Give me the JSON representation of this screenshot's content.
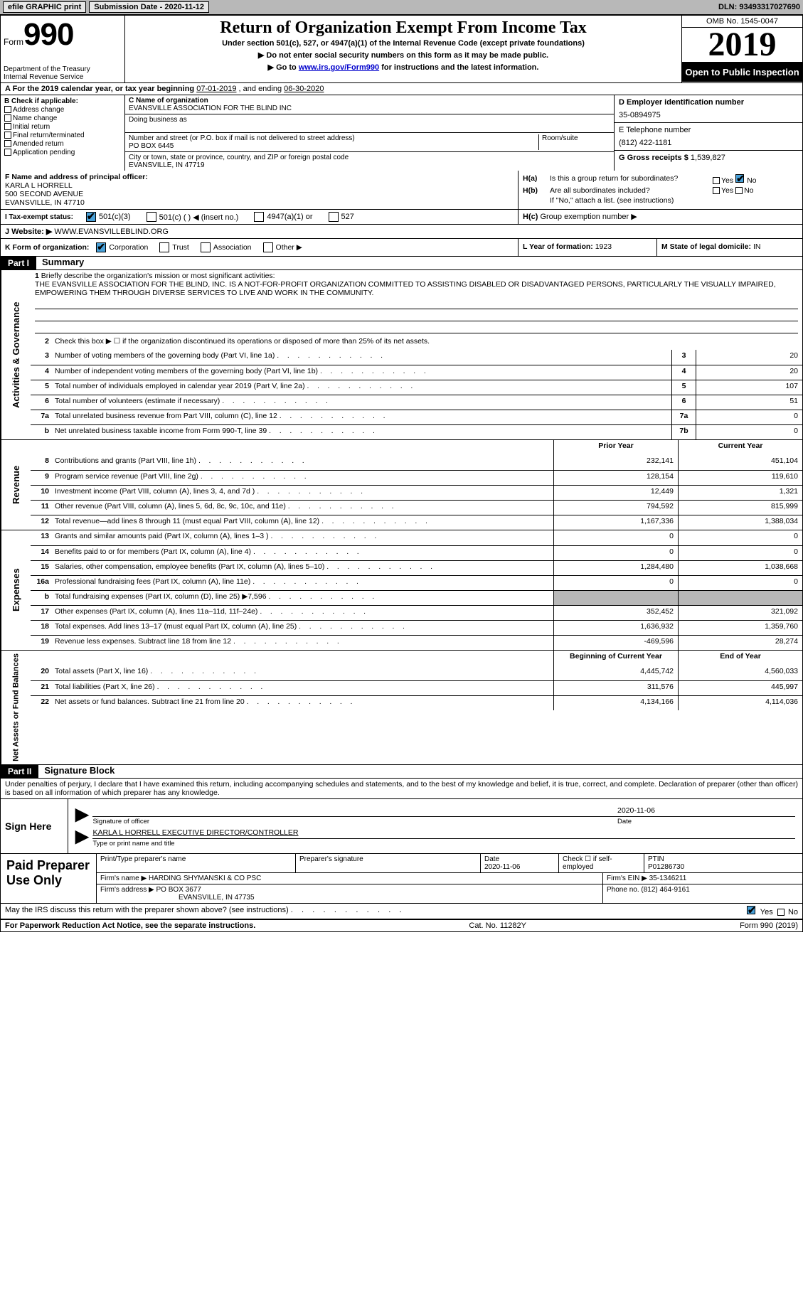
{
  "top_bar": {
    "efile": "efile GRAPHIC print",
    "submission_label": "Submission Date - ",
    "submission_date": "2020-11-12",
    "dln_label": "DLN: ",
    "dln": "93493317027690"
  },
  "header": {
    "form_label": "Form",
    "form_number": "990",
    "dept": "Department of the Treasury\nInternal Revenue Service",
    "title": "Return of Organization Exempt From Income Tax",
    "subtitle": "Under section 501(c), 527, or 4947(a)(1) of the Internal Revenue Code (except private foundations)",
    "note1": "▶ Do not enter social security numbers on this form as it may be made public.",
    "note2_pre": "▶ Go to ",
    "note2_link": "www.irs.gov/Form990",
    "note2_post": " for instructions and the latest information.",
    "omb": "OMB No. 1545-0047",
    "year": "2019",
    "open_public": "Open to Public Inspection"
  },
  "period": {
    "label_a": "A For the 2019 calendar year, or tax year beginning ",
    "begin": "07-01-2019",
    "mid": " , and ending ",
    "end": "06-30-2020"
  },
  "boxB": {
    "label": "B Check if applicable:",
    "opts": [
      "Address change",
      "Name change",
      "Initial return",
      "Final return/terminated",
      "Amended return",
      "Application pending"
    ]
  },
  "boxC": {
    "name_label": "C Name of organization",
    "name": "EVANSVILLE ASSOCIATION FOR THE BLIND INC",
    "dba_label": "Doing business as",
    "dba": "",
    "street_label": "Number and street (or P.O. box if mail is not delivered to street address)",
    "room_label": "Room/suite",
    "street": "PO BOX 6445",
    "city_label": "City or town, state or province, country, and ZIP or foreign postal code",
    "city": "EVANSVILLE, IN  47719"
  },
  "boxD": {
    "label": "D Employer identification number",
    "value": "35-0894975"
  },
  "boxE": {
    "label": "E Telephone number",
    "value": "(812) 422-1181"
  },
  "boxG": {
    "label": "G Gross receipts $ ",
    "value": "1,539,827"
  },
  "boxF": {
    "label": "F Name and address of principal officer:",
    "name": "KARLA L HORRELL",
    "street": "500 SECOND AVENUE",
    "city": "EVANSVILLE, IN  47710"
  },
  "boxH": {
    "a_label": "H(a)",
    "a_text": "Is this a group return for subordinates?",
    "a_yes": "Yes",
    "a_no": "No",
    "a_checked": "no",
    "b_label": "H(b)",
    "b_text": "Are all subordinates included?",
    "b_yes": "Yes",
    "b_no": "No",
    "b_note": "If \"No,\" attach a list. (see instructions)",
    "c_label": "H(c)",
    "c_text": "Group exemption number ▶"
  },
  "boxI": {
    "label": "I    Tax-exempt status:",
    "opts": [
      "501(c)(3)",
      "501(c) (  ) ◀ (insert no.)",
      "4947(a)(1) or",
      "527"
    ],
    "checked": 0
  },
  "boxJ": {
    "label": "J   Website: ▶",
    "value": " WWW.EVANSVILLEBLIND.ORG"
  },
  "boxK": {
    "label": "K Form of organization:",
    "opts": [
      "Corporation",
      "Trust",
      "Association",
      "Other ▶"
    ],
    "checked": 0
  },
  "boxL": {
    "label": "L Year of formation: ",
    "value": "1923"
  },
  "boxM": {
    "label": "M State of legal domicile: ",
    "value": "IN"
  },
  "partI": {
    "header": "Part I",
    "title": "Summary",
    "vert1": "Activities & Governance",
    "vert2": "Revenue",
    "vert3": "Expenses",
    "vert4": "Net Assets or Fund Balances",
    "line1_label": "Briefly describe the organization's mission or most significant activities:",
    "mission": "THE EVANSVILLE ASSOCIATION FOR THE BLIND, INC. IS A NOT-FOR-PROFIT ORGANIZATION COMMITTED TO ASSISTING DISABLED OR DISADVANTAGED PERSONS, PARTICULARLY THE VISUALLY IMPAIRED, EMPOWERING THEM THROUGH DIVERSE SERVICES TO LIVE AND WORK IN THE COMMUNITY.",
    "line2": "Check this box ▶ ☐  if the organization discontinued its operations or disposed of more than 25% of its net assets.",
    "gov_lines": [
      {
        "n": "3",
        "d": "Number of voting members of the governing body (Part VI, line 1a)",
        "bn": "3",
        "v": "20"
      },
      {
        "n": "4",
        "d": "Number of independent voting members of the governing body (Part VI, line 1b)",
        "bn": "4",
        "v": "20"
      },
      {
        "n": "5",
        "d": "Total number of individuals employed in calendar year 2019 (Part V, line 2a)",
        "bn": "5",
        "v": "107"
      },
      {
        "n": "6",
        "d": "Total number of volunteers (estimate if necessary)",
        "bn": "6",
        "v": "51"
      },
      {
        "n": "7a",
        "d": "Total unrelated business revenue from Part VIII, column (C), line 12",
        "bn": "7a",
        "v": "0"
      },
      {
        "n": "b",
        "d": "Net unrelated business taxable income from Form 990-T, line 39",
        "bn": "7b",
        "v": "0"
      }
    ],
    "col_py": "Prior Year",
    "col_cy": "Current Year",
    "rev_lines": [
      {
        "n": "8",
        "d": "Contributions and grants (Part VIII, line 1h)",
        "py": "232,141",
        "cy": "451,104"
      },
      {
        "n": "9",
        "d": "Program service revenue (Part VIII, line 2g)",
        "py": "128,154",
        "cy": "119,610"
      },
      {
        "n": "10",
        "d": "Investment income (Part VIII, column (A), lines 3, 4, and 7d )",
        "py": "12,449",
        "cy": "1,321"
      },
      {
        "n": "11",
        "d": "Other revenue (Part VIII, column (A), lines 5, 6d, 8c, 9c, 10c, and 11e)",
        "py": "794,592",
        "cy": "815,999"
      },
      {
        "n": "12",
        "d": "Total revenue—add lines 8 through 11 (must equal Part VIII, column (A), line 12)",
        "py": "1,167,336",
        "cy": "1,388,034"
      }
    ],
    "exp_lines": [
      {
        "n": "13",
        "d": "Grants and similar amounts paid (Part IX, column (A), lines 1–3 )",
        "py": "0",
        "cy": "0"
      },
      {
        "n": "14",
        "d": "Benefits paid to or for members (Part IX, column (A), line 4)",
        "py": "0",
        "cy": "0"
      },
      {
        "n": "15",
        "d": "Salaries, other compensation, employee benefits (Part IX, column (A), lines 5–10)",
        "py": "1,284,480",
        "cy": "1,038,668"
      },
      {
        "n": "16a",
        "d": "Professional fundraising fees (Part IX, column (A), line 11e)",
        "py": "0",
        "cy": "0"
      },
      {
        "n": "b",
        "d": "Total fundraising expenses (Part IX, column (D), line 25) ▶7,596",
        "py": "",
        "cy": "",
        "shaded": true
      },
      {
        "n": "17",
        "d": "Other expenses (Part IX, column (A), lines 11a–11d, 11f–24e)",
        "py": "352,452",
        "cy": "321,092"
      },
      {
        "n": "18",
        "d": "Total expenses. Add lines 13–17 (must equal Part IX, column (A), line 25)",
        "py": "1,636,932",
        "cy": "1,359,760"
      },
      {
        "n": "19",
        "d": "Revenue less expenses. Subtract line 18 from line 12",
        "py": "-469,596",
        "cy": "28,274"
      }
    ],
    "col_boy": "Beginning of Current Year",
    "col_eoy": "End of Year",
    "na_lines": [
      {
        "n": "20",
        "d": "Total assets (Part X, line 16)",
        "py": "4,445,742",
        "cy": "4,560,033"
      },
      {
        "n": "21",
        "d": "Total liabilities (Part X, line 26)",
        "py": "311,576",
        "cy": "445,997"
      },
      {
        "n": "22",
        "d": "Net assets or fund balances. Subtract line 21 from line 20",
        "py": "4,134,166",
        "cy": "4,114,036"
      }
    ]
  },
  "partII": {
    "header": "Part II",
    "title": "Signature Block",
    "perjury": "Under penalties of perjury, I declare that I have examined this return, including accompanying schedules and statements, and to the best of my knowledge and belief, it is true, correct, and complete. Declaration of preparer (other than officer) is based on all information of which preparer has any knowledge.",
    "sign_here": "Sign Here",
    "sig_of_officer": "Signature of officer",
    "sig_date": "2020-11-06",
    "date_label": "Date",
    "officer_name": "KARLA L HORRELL  EXECUTIVE DIRECTOR/CONTROLLER",
    "type_name": "Type or print name and title",
    "paid_prep": "Paid Preparer Use Only",
    "prep_name_label": "Print/Type preparer's name",
    "prep_sig_label": "Preparer's signature",
    "prep_date_label": "Date",
    "prep_date": "2020-11-06",
    "self_emp_label": "Check ☐ if self-employed",
    "ptin_label": "PTIN",
    "ptin": "P01286730",
    "firm_name_label": "Firm's name    ▶ ",
    "firm_name": "HARDING SHYMANSKI & CO PSC",
    "firm_ein_label": "Firm's EIN ▶ ",
    "firm_ein": "35-1346211",
    "firm_addr_label": "Firm's address ▶ ",
    "firm_addr1": "PO BOX 3677",
    "firm_addr2": "EVANSVILLE, IN  47735",
    "phone_label": "Phone no. ",
    "phone": "(812) 464-9161",
    "discuss": "May the IRS discuss this return with the preparer shown above? (see instructions)",
    "discuss_yes": "Yes",
    "discuss_no": "No",
    "discuss_checked": "yes"
  },
  "footer": {
    "paperwork": "For Paperwork Reduction Act Notice, see the separate instructions.",
    "cat": "Cat. No. 11282Y",
    "form": "Form 990 (2019)"
  }
}
